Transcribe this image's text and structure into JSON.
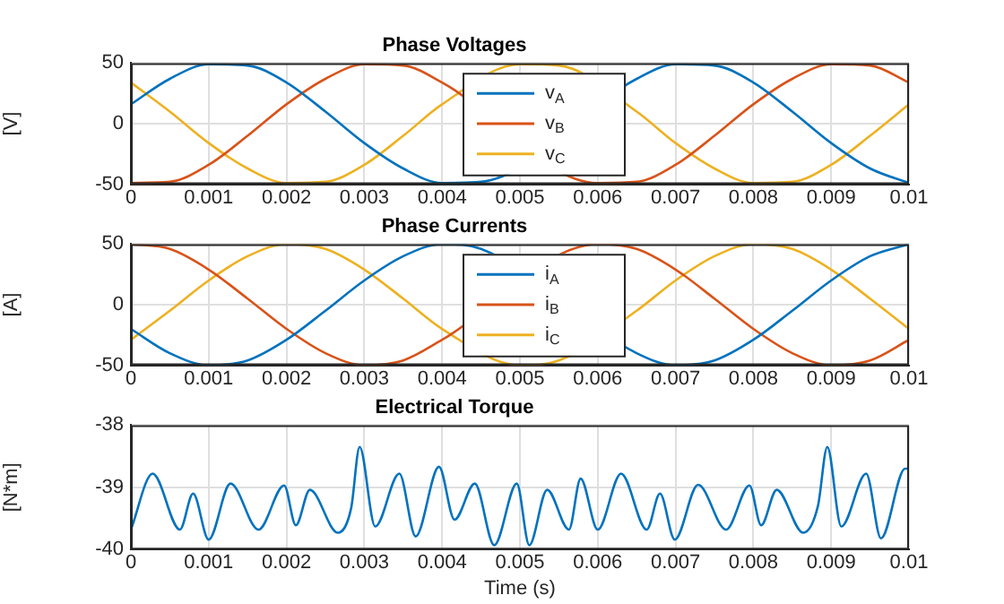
{
  "chart_data": [
    {
      "type": "line",
      "title": "Phase Voltages",
      "ylabel": "[V]",
      "x": [
        0,
        0.0005,
        0.001,
        0.0015,
        0.002,
        0.0025,
        0.003,
        0.0035,
        0.004,
        0.0045,
        0.005,
        0.0055,
        0.006,
        0.0065,
        0.007,
        0.0075,
        0.008,
        0.0085,
        0.009,
        0.0095,
        0.01
      ],
      "xlim": [
        0,
        0.01
      ],
      "xticks": [
        0,
        0.001,
        0.002,
        0.003,
        0.004,
        0.005,
        0.006,
        0.007,
        0.008,
        0.009,
        0.01
      ],
      "ylim": [
        -50,
        50
      ],
      "yticks": [
        -50,
        0,
        50
      ],
      "grid": true,
      "legend": "center",
      "series": [
        {
          "name": "v$_{A}$",
          "color": "#0072bd",
          "values": [
            16,
            37,
            49,
            48,
            34,
            10,
            -16,
            -37,
            -49,
            -48,
            null,
            null,
            null,
            37,
            49,
            48,
            34,
            10,
            -16,
            -37,
            -49
          ]
        },
        {
          "name": "v$_{B}$",
          "color": "#d95319",
          "values": [
            -49,
            -48,
            -34,
            -10,
            16,
            37,
            49,
            48,
            34,
            null,
            null,
            null,
            -49,
            -48,
            -34,
            -10,
            16,
            37,
            49,
            48,
            34
          ]
        },
        {
          "name": "v$_{C}$",
          "color": "#edb120",
          "values": [
            34,
            10,
            -16,
            -37,
            -49,
            -48,
            -34,
            -10,
            16,
            null,
            49,
            48,
            null,
            10,
            -16,
            -37,
            -49,
            -48,
            -34,
            -10,
            16
          ]
        }
      ]
    },
    {
      "type": "line",
      "title": "Phase Currents",
      "ylabel": "[A]",
      "x": [
        0,
        0.0005,
        0.001,
        0.0015,
        0.002,
        0.0025,
        0.003,
        0.0035,
        0.004,
        0.0045,
        0.005,
        0.0055,
        0.006,
        0.0065,
        0.007,
        0.0075,
        0.008,
        0.0085,
        0.009,
        0.0095,
        0.01
      ],
      "xlim": [
        0,
        0.01
      ],
      "xticks": [
        0,
        0.001,
        0.002,
        0.003,
        0.004,
        0.005,
        0.006,
        0.007,
        0.008,
        0.009,
        0.01
      ],
      "ylim": [
        -50,
        50
      ],
      "yticks": [
        -50,
        0,
        50
      ],
      "grid": true,
      "legend": "center",
      "series": [
        {
          "name": "i$_{A}$",
          "color": "#0072bd",
          "values": [
            -20,
            -40,
            -50,
            -46,
            -29,
            -5,
            20,
            40,
            50,
            46,
            null,
            null,
            null,
            -40,
            -50,
            -46,
            -29,
            -5,
            20,
            40,
            50
          ]
        },
        {
          "name": "i$_{B}$",
          "color": "#d95319",
          "values": [
            50,
            46,
            29,
            5,
            -20,
            -40,
            -50,
            -46,
            -29,
            null,
            null,
            null,
            50,
            46,
            29,
            5,
            -20,
            -40,
            -50,
            -46,
            -29
          ]
        },
        {
          "name": "i$_{C}$",
          "color": "#edb120",
          "values": [
            -29,
            -5,
            20,
            40,
            50,
            46,
            29,
            5,
            -20,
            null,
            -50,
            -46,
            null,
            -5,
            20,
            40,
            50,
            46,
            29,
            5,
            -20
          ]
        }
      ]
    },
    {
      "type": "line",
      "title": "Electrical Torque",
      "xlabel": "Time (s)",
      "ylabel": "[N*m]",
      "x": [
        0,
        0.00028,
        0.00063,
        0.0008,
        0.001,
        0.00128,
        0.00164,
        0.00197,
        0.00212,
        0.0023,
        0.00266,
        0.00283,
        0.00294,
        0.00314,
        0.00345,
        0.00366,
        0.00396,
        0.00416,
        0.00442,
        0.00467,
        0.00496,
        0.00512,
        0.00535,
        0.00563,
        0.00578,
        0.006,
        0.0063,
        0.00663,
        0.0068,
        0.00699,
        0.00729,
        0.00765,
        0.00795,
        0.0081,
        0.0083,
        0.00864,
        0.00883,
        0.00895,
        0.00913,
        0.00945,
        0.00964,
        0.00995,
        0.01
      ],
      "xlim": [
        0,
        0.01
      ],
      "xticks": [
        0,
        0.001,
        0.002,
        0.003,
        0.004,
        0.005,
        0.006,
        0.007,
        0.008,
        0.009,
        0.01
      ],
      "ylim": [
        -40,
        -38
      ],
      "yticks": [
        -40,
        -39,
        -38
      ],
      "grid": true,
      "series": [
        {
          "color": "#0072bd",
          "values": [
            -39.68,
            -38.78,
            -39.68,
            -39.1,
            -39.84,
            -38.94,
            -39.68,
            -38.97,
            -39.61,
            -39.04,
            -39.73,
            -39.34,
            -38.35,
            -39.63,
            -38.78,
            -39.79,
            -38.67,
            -39.52,
            -38.94,
            -39.93,
            -38.94,
            -39.93,
            -39.04,
            -39.68,
            -38.86,
            -39.68,
            -38.78,
            -39.68,
            -39.1,
            -39.84,
            -38.96,
            -39.68,
            -38.97,
            -39.61,
            -39.04,
            -39.73,
            -39.3,
            -38.35,
            -39.63,
            -38.78,
            -39.82,
            -38.7,
            -38.7
          ]
        }
      ]
    }
  ]
}
